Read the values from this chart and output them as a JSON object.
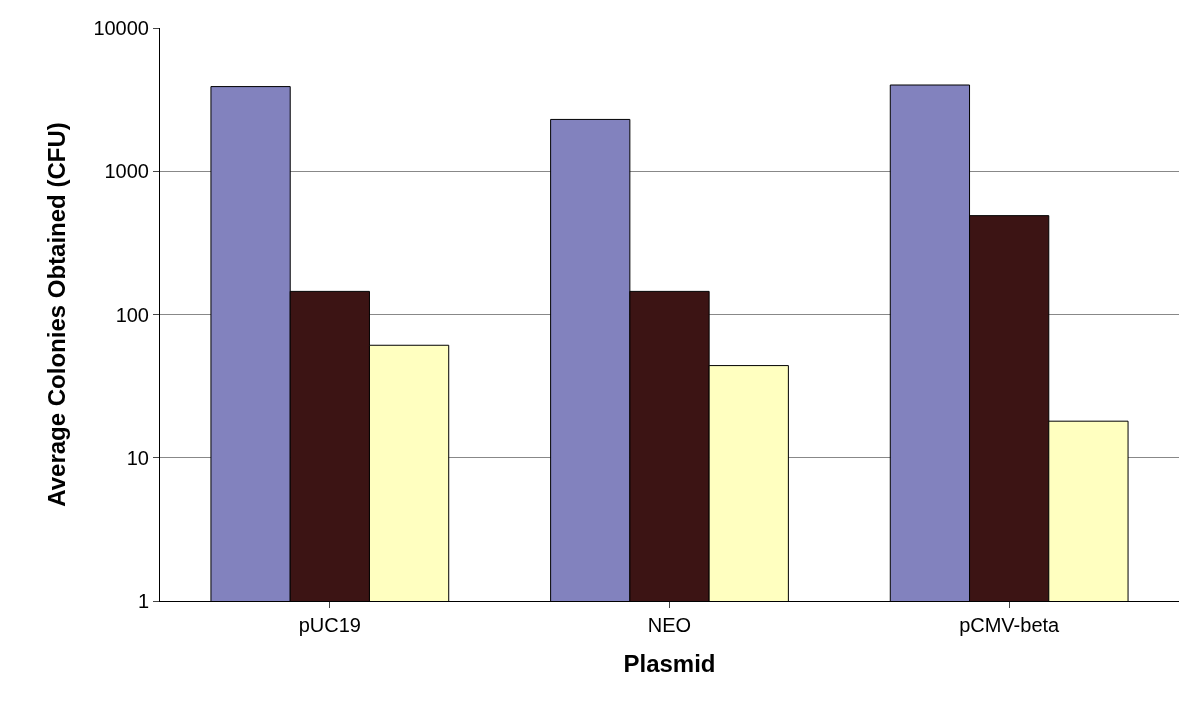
{
  "chart_data": {
    "type": "bar",
    "xlabel": "Plasmid",
    "ylabel": "Average Colonies Obtained (CFU)",
    "categories": [
      "pUC19",
      "NEO",
      "pCMV-beta"
    ],
    "series": [
      {
        "color": "#8282be",
        "values": [
          3900,
          2300,
          4000
        ]
      },
      {
        "color": "#3c1414",
        "values": [
          145,
          145,
          490
        ]
      },
      {
        "color": "#ffffc0",
        "values": [
          61,
          44,
          18
        ]
      }
    ],
    "log": true,
    "ylim": [
      1,
      10000
    ],
    "yticks": [
      1,
      10,
      100,
      1000,
      10000
    ],
    "grid": "y"
  }
}
